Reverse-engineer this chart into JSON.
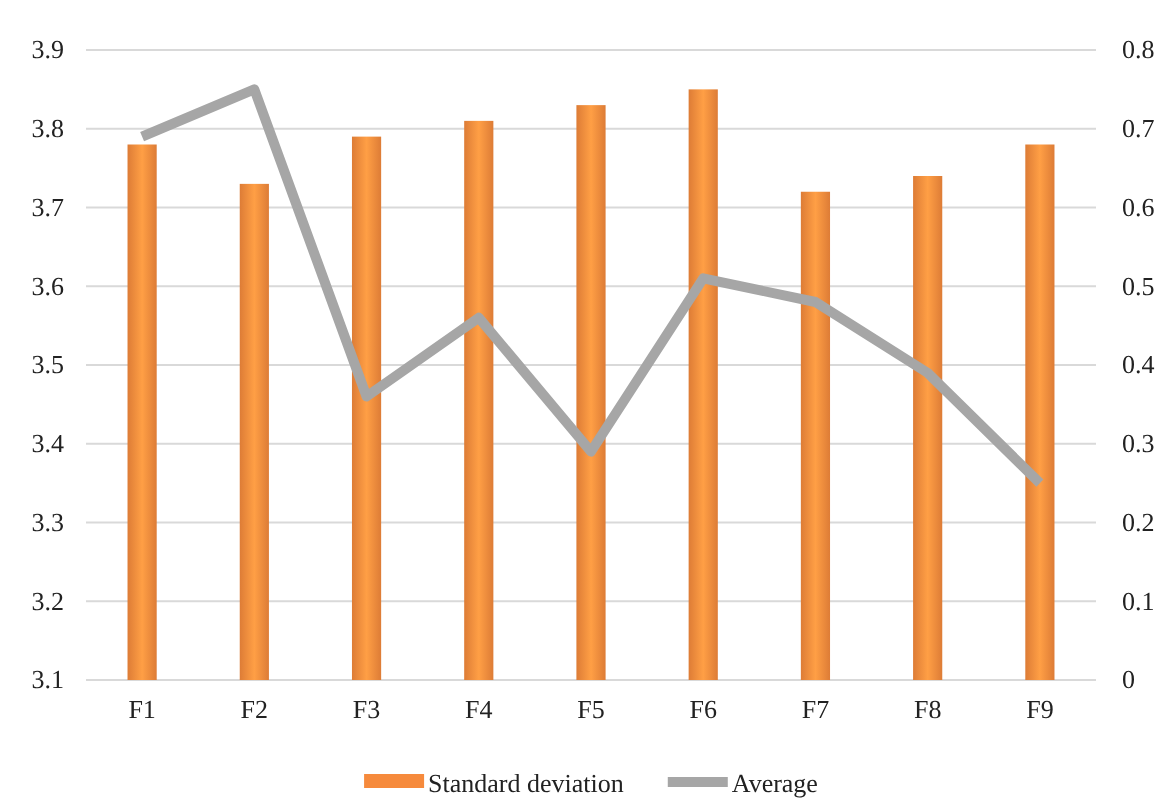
{
  "chart_data": {
    "type": "bar",
    "categories": [
      "F1",
      "F2",
      "F3",
      "F4",
      "F5",
      "F6",
      "F7",
      "F8",
      "F9"
    ],
    "series": [
      {
        "name": "Standard deviation",
        "color": "#f68a3c",
        "values": [
          3.78,
          3.73,
          3.79,
          3.81,
          3.83,
          3.85,
          3.72,
          3.74,
          3.78
        ]
      },
      {
        "name": "Average",
        "type": "line",
        "axis": "y2",
        "color": "#a6a6a6",
        "values": [
          0.69,
          0.75,
          0.36,
          0.46,
          0.29,
          0.51,
          0.48,
          0.39,
          0.25
        ]
      }
    ],
    "ylim": [
      3.1,
      3.9
    ],
    "yticks": [
      3.1,
      3.2,
      3.3,
      3.4,
      3.5,
      3.6,
      3.7,
      3.8,
      3.9
    ],
    "y2lim": [
      0,
      0.8
    ],
    "y2ticks": [
      0,
      0.1,
      0.2,
      0.3,
      0.4,
      0.5,
      0.6,
      0.7,
      0.8
    ],
    "grid": "y",
    "legend": "bottom"
  }
}
